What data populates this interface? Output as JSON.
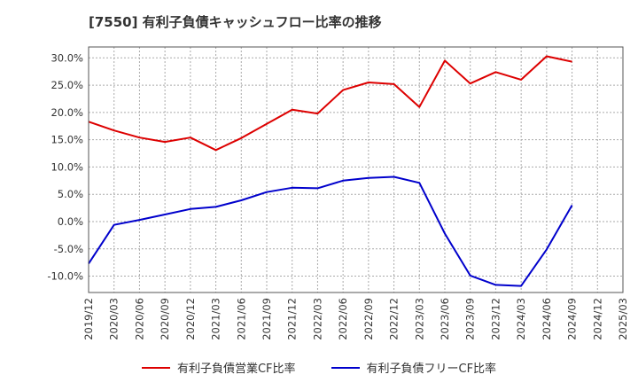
{
  "chart_data": {
    "type": "line",
    "title": "[7550]  有利子負債キャッシュフロー比率の推移",
    "x": [
      "2019/12",
      "2020/03",
      "2020/06",
      "2020/09",
      "2020/12",
      "2021/03",
      "2021/06",
      "2021/09",
      "2021/12",
      "2022/03",
      "2022/06",
      "2022/09",
      "2022/12",
      "2023/03",
      "2023/06",
      "2023/09",
      "2023/12",
      "2024/03",
      "2024/06",
      "2024/09",
      "2024/12",
      "2025/03"
    ],
    "ylim": [
      -13.0,
      32.0
    ],
    "yticks": [
      -10,
      -5,
      0,
      5,
      10,
      15,
      20,
      25,
      30
    ],
    "ytick_labels": [
      "-10.0%",
      "-5.0%",
      "0.0%",
      "5.0%",
      "10.0%",
      "15.0%",
      "20.0%",
      "25.0%",
      "30.0%"
    ],
    "grid": true,
    "legend_position": "bottom",
    "series": [
      {
        "name": "有利子負債営業CF比率",
        "color": "#dd0000",
        "values": [
          18.3,
          16.7,
          15.4,
          14.6,
          15.4,
          13.1,
          15.3,
          17.9,
          20.5,
          19.8,
          24.1,
          25.5,
          25.2,
          21.0,
          29.5,
          25.3,
          27.4,
          26.0,
          30.3,
          29.3,
          null,
          null
        ]
      },
      {
        "name": "有利子負債フリーCF比率",
        "color": "#0000cc",
        "values": [
          -7.7,
          -0.6,
          0.3,
          1.3,
          2.3,
          2.7,
          3.9,
          5.4,
          6.2,
          6.1,
          7.5,
          8.0,
          8.2,
          7.1,
          -2.2,
          -9.9,
          -11.6,
          -11.8,
          -5.1,
          3.0,
          null,
          null
        ]
      }
    ]
  }
}
